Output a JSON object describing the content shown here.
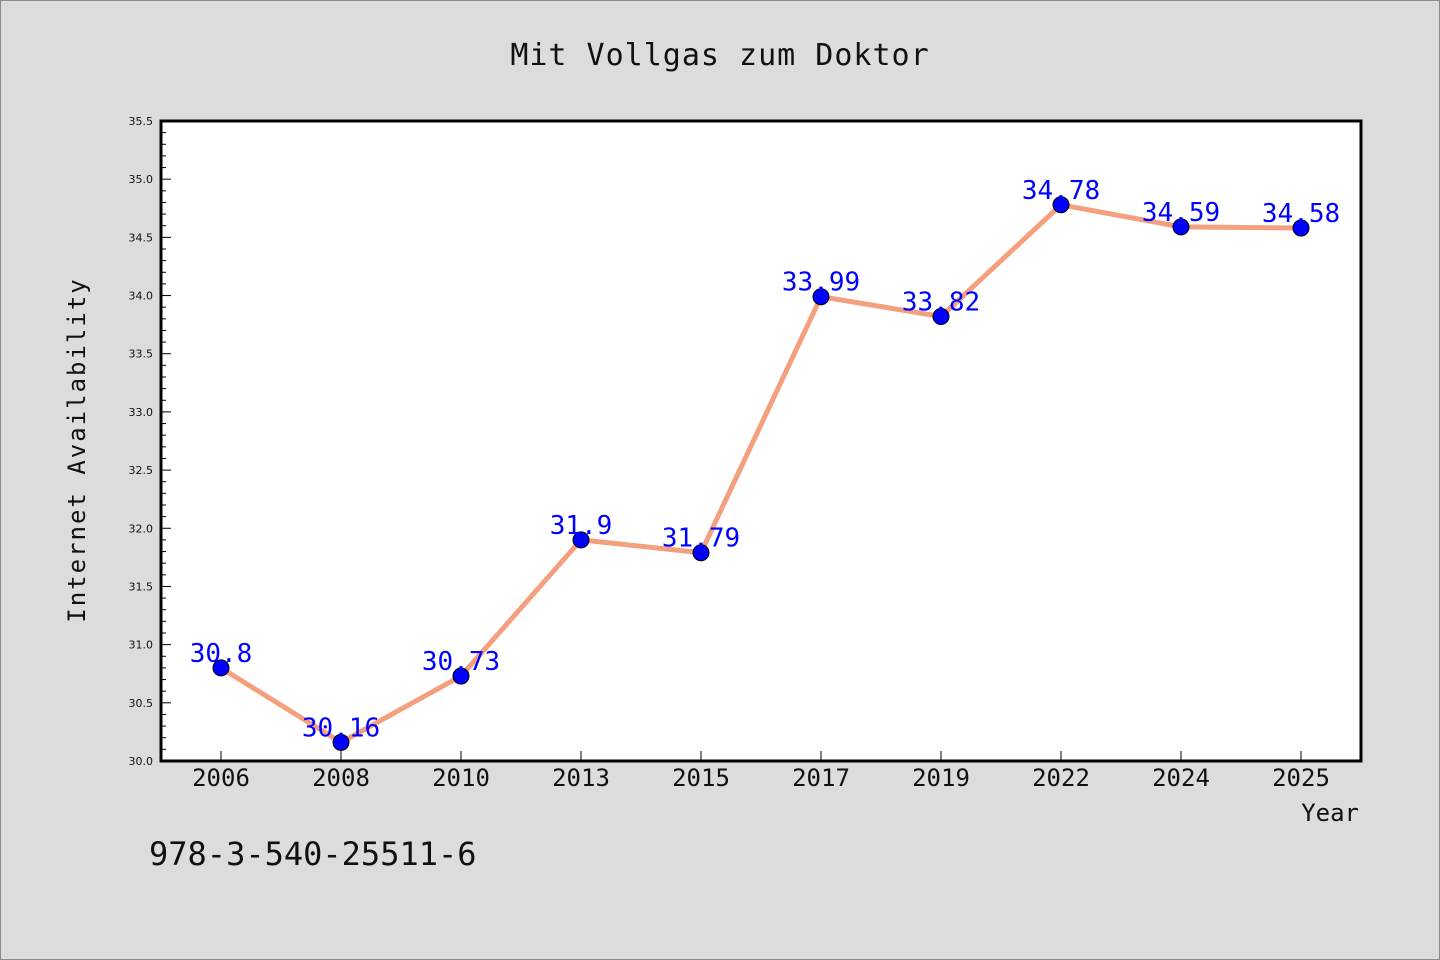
{
  "chart_data": {
    "type": "line",
    "title": "Mit Vollgas zum Doktor",
    "xlabel": "Year",
    "ylabel": "Internet Availability",
    "categories": [
      "2006",
      "2008",
      "2010",
      "2013",
      "2015",
      "2017",
      "2019",
      "2022",
      "2024",
      "2025"
    ],
    "values": [
      30.8,
      30.16,
      30.73,
      31.9,
      31.79,
      33.99,
      33.82,
      34.78,
      34.59,
      34.58
    ],
    "data_labels": [
      "30.8",
      "30.16",
      "30.73",
      "31.9",
      "31.79",
      "33.99",
      "33.82",
      "34.78",
      "34.59",
      "34.58"
    ],
    "ylim": [
      30.0,
      35.5
    ],
    "yticks": [
      "30.0",
      "30.5",
      "31.0",
      "31.5",
      "32.0",
      "32.5",
      "33.0",
      "33.5",
      "34.0",
      "34.5",
      "35.0",
      "35.5"
    ],
    "grid": false,
    "legend": "none",
    "colors": {
      "line": "#f4a07f",
      "marker": "#0000ff",
      "data_label": "#0000ff",
      "plot_background": "#ffffff",
      "figure_background": "#dcdcdc"
    }
  },
  "annotation": {
    "isbn": "978-3-540-25511-6"
  }
}
